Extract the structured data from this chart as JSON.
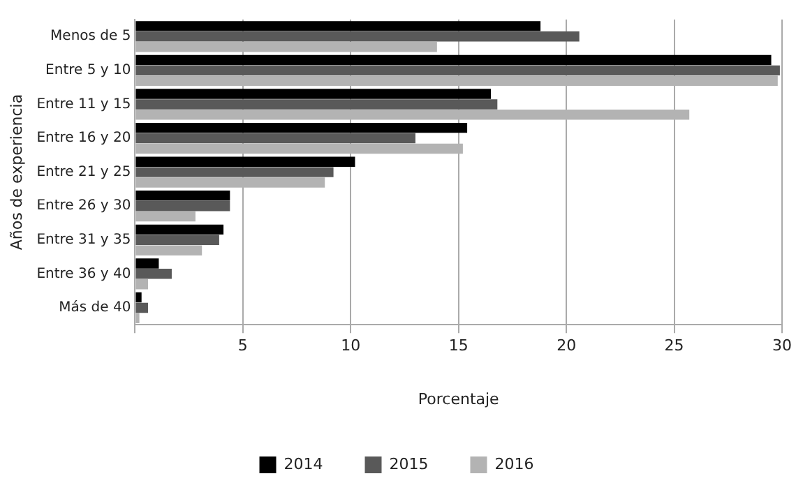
{
  "chart_data": {
    "type": "bar",
    "orientation": "horizontal",
    "xlabel": "Porcentaje",
    "ylabel": "Años de experiencia",
    "categories": [
      "Menos de 5",
      "Entre 5 y 10",
      "Entre 11 y 15",
      "Entre 16 y 20",
      "Entre 21 y 25",
      "Entre 26 y 30",
      "Entre 31 y 35",
      "Entre 36 y 40",
      "Más de 40"
    ],
    "series": [
      {
        "name": "2014",
        "color": "#000000",
        "values": [
          18.8,
          29.5,
          16.5,
          15.4,
          10.2,
          4.4,
          4.1,
          1.1,
          0.3
        ]
      },
      {
        "name": "2015",
        "color": "#595959",
        "values": [
          20.6,
          29.9,
          16.8,
          13.0,
          9.2,
          4.4,
          3.9,
          1.7,
          0.6
        ]
      },
      {
        "name": "2016",
        "color": "#b3b3b3",
        "values": [
          14.0,
          29.8,
          25.7,
          15.2,
          8.8,
          2.8,
          3.1,
          0.6,
          0.2
        ]
      }
    ],
    "xlim": [
      0,
      30
    ],
    "xticks": [
      {
        "value": 0,
        "label": null
      },
      5,
      10,
      15,
      20,
      25,
      30
    ],
    "grid": "x",
    "legend": "bottom"
  }
}
